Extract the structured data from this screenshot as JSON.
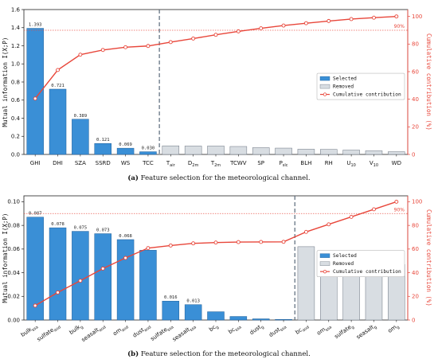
{
  "chart_data": [
    {
      "type": "bar",
      "categories": [
        "GHI",
        "DHI",
        "SZA",
        "SSRD",
        "WS",
        "TCC",
        "T_air",
        "D_2m",
        "T_2m",
        "TCWV",
        "SP",
        "P_slc",
        "BLH",
        "RH",
        "U_10",
        "V_10",
        "WD"
      ],
      "values": [
        1.393,
        0.721,
        0.389,
        0.121,
        0.069,
        0.03,
        0.095,
        0.093,
        0.093,
        0.088,
        0.075,
        0.07,
        0.058,
        0.056,
        0.048,
        0.04,
        0.03
      ],
      "value_labels": [
        "1.393",
        "0.721",
        "0.389",
        "0.121",
        "0.069",
        "0.030",
        "",
        "",
        "",
        "",
        "",
        "",
        "",
        "",
        "",
        "",
        ""
      ],
      "selected_count": 6,
      "cumulative": [
        40.5,
        61.2,
        72.3,
        75.7,
        77.7,
        78.6,
        81.4,
        84.0,
        86.7,
        89.2,
        91.4,
        93.4,
        95.1,
        96.7,
        98.1,
        99.1,
        100.0
      ],
      "threshold_pct": 90,
      "threshold_label": "90%",
      "ylabel": "Mutual information I(X;P)",
      "y2label": "Cumulative contribution (%)",
      "ylim": [
        0,
        1.6
      ],
      "yticks": [
        "0.0",
        "0.2",
        "0.4",
        "0.6",
        "0.8",
        "1.0",
        "1.2",
        "1.4",
        "1.6"
      ],
      "y2lim": [
        0,
        105
      ],
      "y2ticks": [
        "0",
        "20",
        "40",
        "60",
        "80",
        "100"
      ],
      "legend": {
        "selected": "Selected",
        "removed": "Removed",
        "cumulative": "Cumulative contribution",
        "position": "center-right"
      },
      "caption_tag": "(a)",
      "caption": " Feature selection for the meteorological channel.",
      "colors": {
        "selected": "#3a8fd6",
        "removed": "#d8dde2",
        "line": "#e8463a",
        "divider": "#5a6a7a"
      }
    },
    {
      "type": "bar",
      "categories": [
        "bulk_ssa",
        "sulfate_aod",
        "bulk_g",
        "seasalt_aod",
        "om_aod",
        "dust_aod",
        "sulfate_ssa",
        "seasalt_ssa",
        "bc_g",
        "bc_ssa",
        "dust_g",
        "dust_ssa",
        "bc_aod",
        "om_ssa",
        "sulfate_g",
        "seasalt_g",
        "om_g"
      ],
      "values": [
        0.087,
        0.078,
        0.075,
        0.073,
        0.068,
        0.059,
        0.016,
        0.013,
        0.007,
        0.003,
        0.001,
        0.0005,
        0.062,
        0.047,
        0.047,
        0.047,
        0.047
      ],
      "value_labels": [
        "0.087",
        "0.078",
        "0.075",
        "0.073",
        "0.068",
        "",
        "0.016",
        "0.013",
        "",
        "",
        "",
        "",
        "",
        "",
        "",
        "",
        ""
      ],
      "selected_count": 12,
      "cumulative": [
        12.2,
        23.3,
        33.2,
        43.5,
        52.5,
        60.8,
        63.0,
        64.8,
        65.5,
        65.9,
        66.0,
        66.1,
        74.5,
        80.9,
        87.2,
        93.6,
        100.0
      ],
      "threshold_pct": 90,
      "threshold_label": "90%",
      "ylabel": "Mutual information I(X;P)",
      "y2label": "Cumulative contribution (%)",
      "ylim": [
        0,
        0.105
      ],
      "yticks": [
        "0.00",
        "0.02",
        "0.04",
        "0.06",
        "0.08",
        "0.10"
      ],
      "y2lim": [
        0,
        105
      ],
      "y2ticks": [
        "0",
        "20",
        "40",
        "60",
        "80",
        "100"
      ],
      "legend": {
        "selected": "Selected",
        "removed": "Removed",
        "cumulative": "Cumulative contribution",
        "position": "center-right"
      },
      "caption_tag": "(b)",
      "caption": " Feature selection for the meteorological channel.",
      "colors": {
        "selected": "#3a8fd6",
        "removed": "#d8dde2",
        "line": "#e8463a",
        "divider": "#5a6a7a"
      }
    }
  ]
}
